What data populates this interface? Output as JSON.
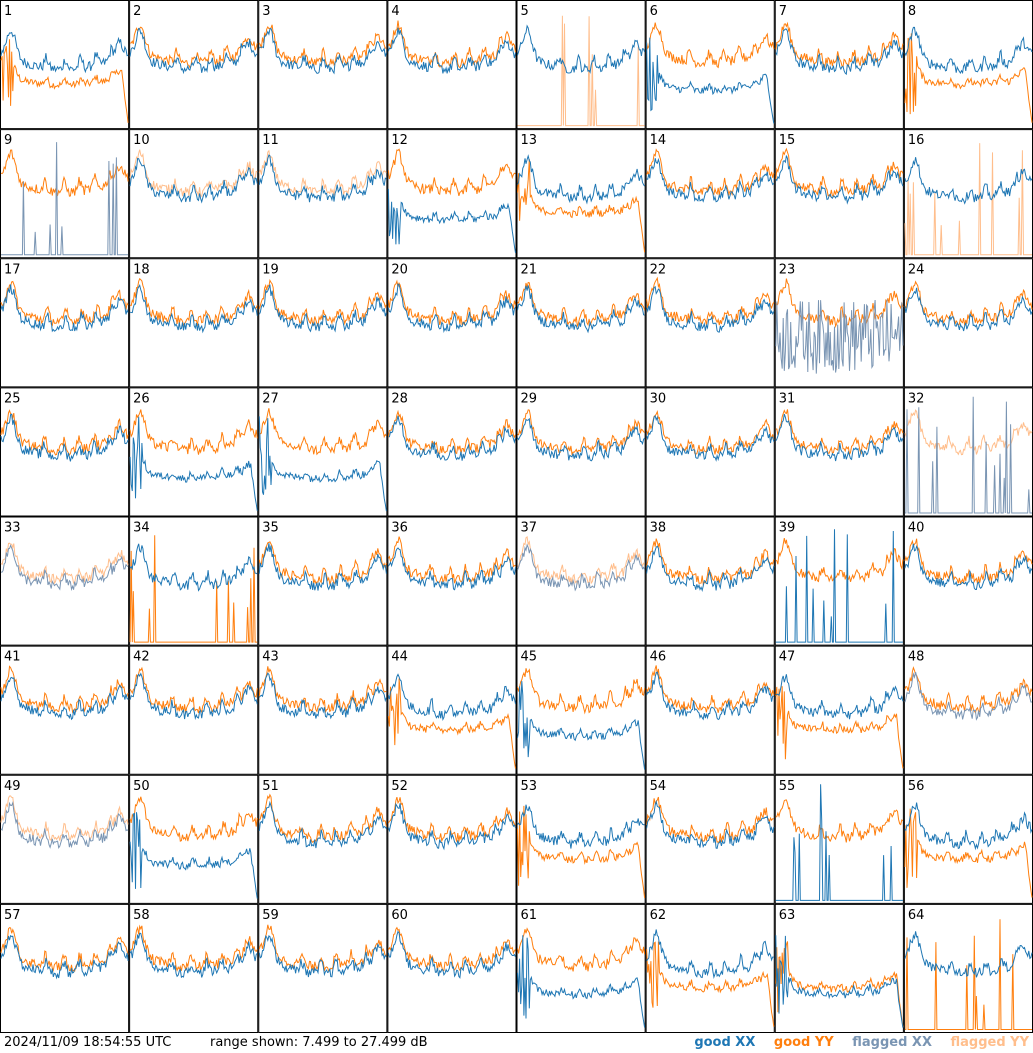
{
  "footer": {
    "timestamp": "2024/11/09 18:54:55 UTC",
    "range_text": "range shown: 7.499 to 27.499 dB"
  },
  "legend": [
    {
      "label": "good XX",
      "color": "#1f77b4"
    },
    {
      "label": "good YY",
      "color": "#ff7f0e"
    },
    {
      "label": "flagged XX",
      "color": "#7a95b3"
    },
    {
      "label": "flagged YY",
      "color": "#ffbe8c"
    }
  ],
  "chart_data": {
    "type": "line",
    "title": "",
    "ylim": [
      7.499,
      27.499
    ],
    "grid_columns": 8,
    "grid_rows": 8,
    "tiles": [
      {
        "label": "1",
        "xx": "good",
        "yy": "good",
        "xx_shape": "normal",
        "yy_shape": "drop"
      },
      {
        "label": "2",
        "xx": "good",
        "yy": "good",
        "xx_shape": "normal",
        "yy_shape": "normal"
      },
      {
        "label": "3",
        "xx": "good",
        "yy": "good",
        "xx_shape": "normal",
        "yy_shape": "normal"
      },
      {
        "label": "4",
        "xx": "good",
        "yy": "good",
        "xx_shape": "normal",
        "yy_shape": "normal"
      },
      {
        "label": "5",
        "xx": "good",
        "yy": "flagged",
        "xx_shape": "normal",
        "yy_shape": "spikes"
      },
      {
        "label": "6",
        "xx": "good",
        "yy": "good",
        "xx_shape": "drop",
        "yy_shape": "normal"
      },
      {
        "label": "7",
        "xx": "good",
        "yy": "good",
        "xx_shape": "normal",
        "yy_shape": "normal"
      },
      {
        "label": "8",
        "xx": "good",
        "yy": "good",
        "xx_shape": "normal",
        "yy_shape": "drop"
      },
      {
        "label": "9",
        "xx": "flagged",
        "yy": "good",
        "xx_shape": "spikes",
        "yy_shape": "normal"
      },
      {
        "label": "10",
        "xx": "good",
        "yy": "flagged",
        "xx_shape": "normal",
        "yy_shape": "normal"
      },
      {
        "label": "11",
        "xx": "good",
        "yy": "flagged",
        "xx_shape": "normal",
        "yy_shape": "normal"
      },
      {
        "label": "12",
        "xx": "good",
        "yy": "good",
        "xx_shape": "drop",
        "yy_shape": "normal"
      },
      {
        "label": "13",
        "xx": "good",
        "yy": "good",
        "xx_shape": "normal",
        "yy_shape": "drop"
      },
      {
        "label": "14",
        "xx": "good",
        "yy": "good",
        "xx_shape": "normal",
        "yy_shape": "normal"
      },
      {
        "label": "15",
        "xx": "good",
        "yy": "good",
        "xx_shape": "normal",
        "yy_shape": "normal"
      },
      {
        "label": "16",
        "xx": "good",
        "yy": "flagged",
        "xx_shape": "normal",
        "yy_shape": "spikes"
      },
      {
        "label": "17",
        "xx": "good",
        "yy": "good",
        "xx_shape": "normal",
        "yy_shape": "normal"
      },
      {
        "label": "18",
        "xx": "good",
        "yy": "good",
        "xx_shape": "normal",
        "yy_shape": "normal"
      },
      {
        "label": "19",
        "xx": "good",
        "yy": "good",
        "xx_shape": "normal",
        "yy_shape": "normal"
      },
      {
        "label": "20",
        "xx": "good",
        "yy": "good",
        "xx_shape": "normal",
        "yy_shape": "normal"
      },
      {
        "label": "21",
        "xx": "good",
        "yy": "good",
        "xx_shape": "normal",
        "yy_shape": "normal"
      },
      {
        "label": "22",
        "xx": "good",
        "yy": "good",
        "xx_shape": "normal",
        "yy_shape": "normal"
      },
      {
        "label": "23",
        "xx": "flagged",
        "yy": "good",
        "xx_shape": "noise",
        "yy_shape": "normal"
      },
      {
        "label": "24",
        "xx": "good",
        "yy": "good",
        "xx_shape": "normal",
        "yy_shape": "normal"
      },
      {
        "label": "25",
        "xx": "good",
        "yy": "good",
        "xx_shape": "normal",
        "yy_shape": "normal"
      },
      {
        "label": "26",
        "xx": "good",
        "yy": "good",
        "xx_shape": "drop",
        "yy_shape": "normal"
      },
      {
        "label": "27",
        "xx": "good",
        "yy": "good",
        "xx_shape": "drop",
        "yy_shape": "normal"
      },
      {
        "label": "28",
        "xx": "good",
        "yy": "good",
        "xx_shape": "normal",
        "yy_shape": "normal"
      },
      {
        "label": "29",
        "xx": "good",
        "yy": "good",
        "xx_shape": "normal",
        "yy_shape": "normal"
      },
      {
        "label": "30",
        "xx": "good",
        "yy": "good",
        "xx_shape": "normal",
        "yy_shape": "normal"
      },
      {
        "label": "31",
        "xx": "good",
        "yy": "good",
        "xx_shape": "normal",
        "yy_shape": "normal"
      },
      {
        "label": "32",
        "xx": "flagged",
        "yy": "flagged",
        "xx_shape": "spikes",
        "yy_shape": "normal"
      },
      {
        "label": "33",
        "xx": "flagged",
        "yy": "flagged",
        "xx_shape": "normal",
        "yy_shape": "normal"
      },
      {
        "label": "34",
        "xx": "good",
        "yy": "good",
        "xx_shape": "normal",
        "yy_shape": "spikes"
      },
      {
        "label": "35",
        "xx": "good",
        "yy": "good",
        "xx_shape": "normal",
        "yy_shape": "normal"
      },
      {
        "label": "36",
        "xx": "good",
        "yy": "good",
        "xx_shape": "normal",
        "yy_shape": "normal"
      },
      {
        "label": "37",
        "xx": "flagged",
        "yy": "flagged",
        "xx_shape": "normal",
        "yy_shape": "normal"
      },
      {
        "label": "38",
        "xx": "good",
        "yy": "good",
        "xx_shape": "normal",
        "yy_shape": "normal"
      },
      {
        "label": "39",
        "xx": "good",
        "yy": "good",
        "xx_shape": "spikes",
        "yy_shape": "normal"
      },
      {
        "label": "40",
        "xx": "good",
        "yy": "good",
        "xx_shape": "normal",
        "yy_shape": "normal"
      },
      {
        "label": "41",
        "xx": "good",
        "yy": "good",
        "xx_shape": "normal",
        "yy_shape": "normal"
      },
      {
        "label": "42",
        "xx": "good",
        "yy": "good",
        "xx_shape": "normal",
        "yy_shape": "normal"
      },
      {
        "label": "43",
        "xx": "good",
        "yy": "good",
        "xx_shape": "normal",
        "yy_shape": "normal"
      },
      {
        "label": "44",
        "xx": "good",
        "yy": "good",
        "xx_shape": "normal",
        "yy_shape": "drop"
      },
      {
        "label": "45",
        "xx": "good",
        "yy": "good",
        "xx_shape": "drop",
        "yy_shape": "normal"
      },
      {
        "label": "46",
        "xx": "good",
        "yy": "good",
        "xx_shape": "normal",
        "yy_shape": "normal"
      },
      {
        "label": "47",
        "xx": "good",
        "yy": "good",
        "xx_shape": "normal",
        "yy_shape": "drop"
      },
      {
        "label": "48",
        "xx": "flagged",
        "yy": "good",
        "xx_shape": "normal",
        "yy_shape": "normal"
      },
      {
        "label": "49",
        "xx": "flagged",
        "yy": "flagged",
        "xx_shape": "normal",
        "yy_shape": "normal"
      },
      {
        "label": "50",
        "xx": "good",
        "yy": "good",
        "xx_shape": "drop",
        "yy_shape": "normal"
      },
      {
        "label": "51",
        "xx": "good",
        "yy": "good",
        "xx_shape": "normal",
        "yy_shape": "normal"
      },
      {
        "label": "52",
        "xx": "good",
        "yy": "good",
        "xx_shape": "normal",
        "yy_shape": "normal"
      },
      {
        "label": "53",
        "xx": "good",
        "yy": "good",
        "xx_shape": "normal",
        "yy_shape": "drop"
      },
      {
        "label": "54",
        "xx": "good",
        "yy": "good",
        "xx_shape": "normal",
        "yy_shape": "normal"
      },
      {
        "label": "55",
        "xx": "good",
        "yy": "good",
        "xx_shape": "spikes",
        "yy_shape": "normal"
      },
      {
        "label": "56",
        "xx": "good",
        "yy": "good",
        "xx_shape": "normal",
        "yy_shape": "drop"
      },
      {
        "label": "57",
        "xx": "good",
        "yy": "good",
        "xx_shape": "normal",
        "yy_shape": "normal"
      },
      {
        "label": "58",
        "xx": "good",
        "yy": "good",
        "xx_shape": "normal",
        "yy_shape": "normal"
      },
      {
        "label": "59",
        "xx": "good",
        "yy": "good",
        "xx_shape": "normal",
        "yy_shape": "normal"
      },
      {
        "label": "60",
        "xx": "good",
        "yy": "good",
        "xx_shape": "normal",
        "yy_shape": "normal"
      },
      {
        "label": "61",
        "xx": "good",
        "yy": "good",
        "xx_shape": "drop",
        "yy_shape": "normal"
      },
      {
        "label": "62",
        "xx": "good",
        "yy": "good",
        "xx_shape": "normal",
        "yy_shape": "drop"
      },
      {
        "label": "63",
        "xx": "good",
        "yy": "good",
        "xx_shape": "drop",
        "yy_shape": "drop"
      },
      {
        "label": "64",
        "xx": "good",
        "yy": "good",
        "xx_shape": "normal",
        "yy_shape": "spikes"
      }
    ]
  }
}
